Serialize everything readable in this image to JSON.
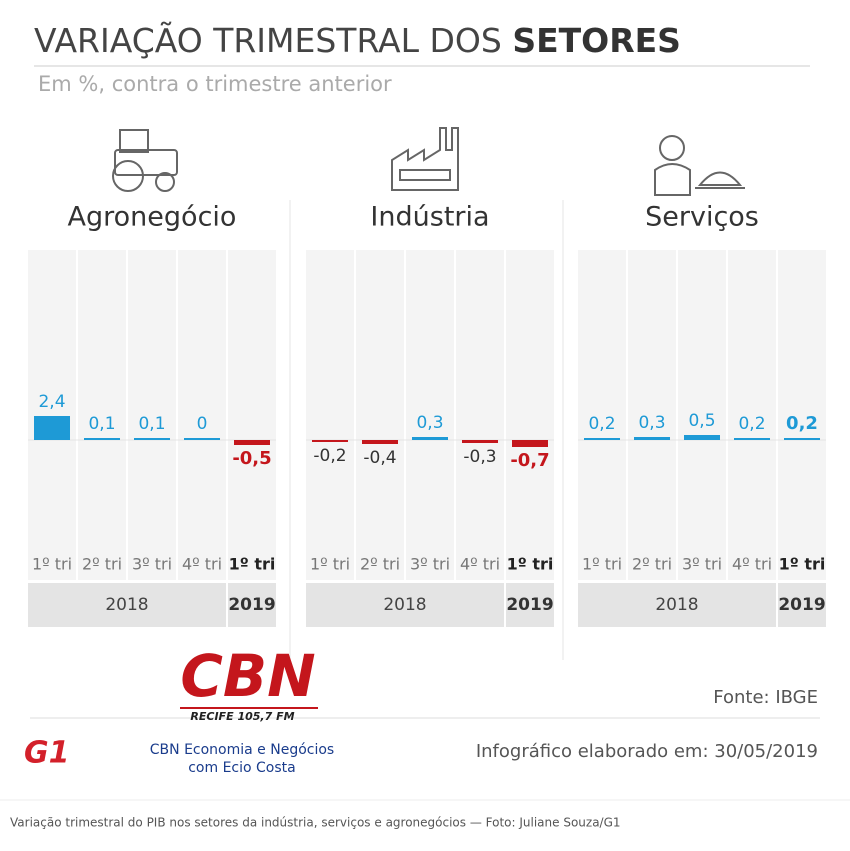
{
  "header": {
    "title": "VARIAÇÃO TRIMESTRAL DOS",
    "title_emphasis": "SETORES",
    "subtitle": "Em %, contra o trimestre anterior"
  },
  "chart_data": [
    {
      "type": "bar",
      "title": "Agronegócio",
      "categories": [
        "1º tri",
        "2º tri",
        "3º tri",
        "4º tri",
        "1º tri"
      ],
      "values": [
        2.4,
        0.1,
        0.1,
        0,
        -0.5
      ],
      "value_labels": [
        "2,4",
        "0,1",
        "0,1",
        "0",
        "-0,5"
      ],
      "colors": [
        "#1e9ad6",
        "#1e9ad6",
        "#1e9ad6",
        "#1e9ad6",
        "#c4161c"
      ],
      "groups": [
        "2018",
        "2019"
      ]
    },
    {
      "type": "bar",
      "title": "Indústria",
      "categories": [
        "1º tri",
        "2º tri",
        "3º tri",
        "4º tri",
        "1º tri"
      ],
      "values": [
        -0.2,
        -0.4,
        0.3,
        -0.3,
        -0.7
      ],
      "value_labels": [
        "-0,2",
        "-0,4",
        "0,3",
        "-0,3",
        "-0,7"
      ],
      "colors": [
        "#c4161c",
        "#c4161c",
        "#1e9ad6",
        "#c4161c",
        "#c4161c"
      ],
      "groups": [
        "2018",
        "2019"
      ]
    },
    {
      "type": "bar",
      "title": "Serviços",
      "categories": [
        "1º tri",
        "2º tri",
        "3º tri",
        "4º tri",
        "1º tri"
      ],
      "values": [
        0.2,
        0.3,
        0.5,
        0.2,
        0.2
      ],
      "value_labels": [
        "0,2",
        "0,3",
        "0,5",
        "0,2",
        "0,2"
      ],
      "colors": [
        "#1e9ad6",
        "#1e9ad6",
        "#1e9ad6",
        "#1e9ad6",
        "#1e9ad6"
      ],
      "groups": [
        "2018",
        "2019"
      ]
    }
  ],
  "footer": {
    "source": "Fonte: IBGE",
    "date": "Infográfico elaborado em: 30/05/2019",
    "brand": "G1",
    "logo": "CBN",
    "city": "RECIFE",
    "frequency": "105,7 FM",
    "program": "CBN Economia e Negócios",
    "host": "com Ecio Costa",
    "caption": "Variação trimestral do PIB nos setores da indústria, serviços e agronegócios — Foto: Juliane Souza/G1"
  }
}
